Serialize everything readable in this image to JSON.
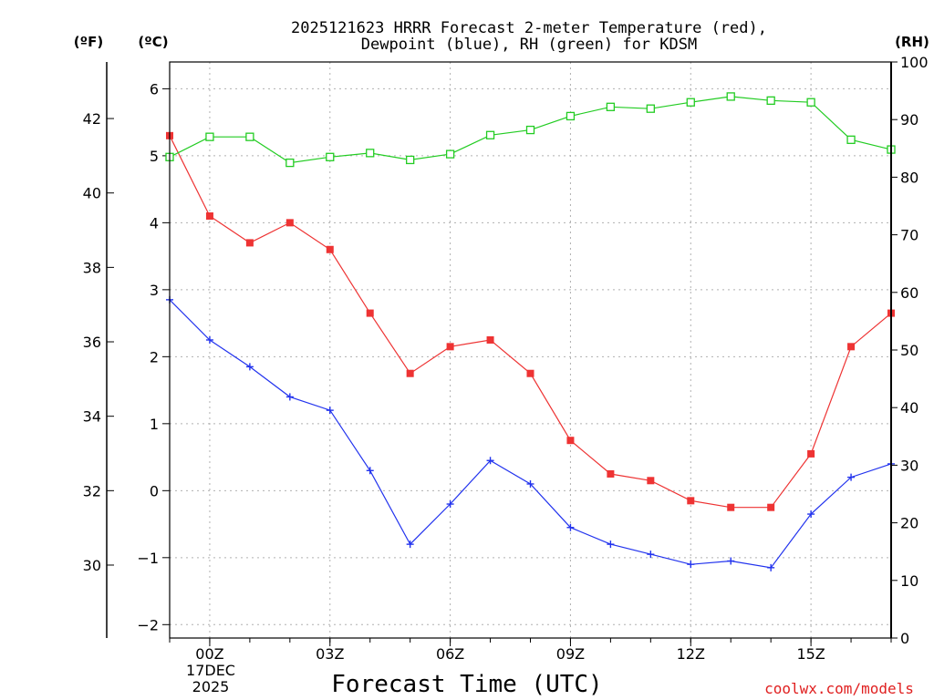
{
  "chart_data": {
    "type": "line",
    "title_line1": "2025121623 HRRR Forecast 2-meter Temperature (red),",
    "title_line2": "Dewpoint (blue), RH (green) for KDSM",
    "xlabel": "Forecast Time (UTC)",
    "credit": "coolwx.com/models",
    "units": {
      "fahrenheit": "(ºF)",
      "celsius": "(ºC)",
      "rh": "(RH)"
    },
    "x_hours": [
      -1,
      0,
      1,
      2,
      3,
      4,
      5,
      6,
      7,
      8,
      9,
      10,
      11,
      12,
      13,
      14,
      15,
      16,
      17
    ],
    "xlim": [
      -1,
      17
    ],
    "x_ticks": [
      {
        "hour": 0,
        "label": "00Z"
      },
      {
        "hour": 3,
        "label": "03Z"
      },
      {
        "hour": 6,
        "label": "06Z"
      },
      {
        "hour": 9,
        "label": "09Z"
      },
      {
        "hour": 12,
        "label": "12Z"
      },
      {
        "hour": 15,
        "label": "15Z"
      }
    ],
    "date_label_line1": "17DEC",
    "date_label_line2": "2025",
    "ylim_celsius": [
      -2.2,
      6.4
    ],
    "ylim_rh": [
      0,
      100
    ],
    "y_ticks_celsius": [
      "6",
      "5",
      "4",
      "3",
      "2",
      "1",
      "0",
      "−1",
      "−2"
    ],
    "y_ticks_fahrenheit": [
      "42",
      "40",
      "38",
      "36",
      "34",
      "32",
      "30"
    ],
    "y_ticks_rh": [
      "100",
      "90",
      "80",
      "70",
      "60",
      "50",
      "40",
      "30",
      "20",
      "10",
      "0"
    ],
    "series": [
      {
        "name": "Temperature",
        "unit": "C",
        "color": "#ee3333",
        "marker": "filled-square",
        "values": [
          5.3,
          4.1,
          3.7,
          4.0,
          3.6,
          2.65,
          1.75,
          2.15,
          2.25,
          1.75,
          0.75,
          0.25,
          0.15,
          -0.15,
          -0.25,
          -0.25,
          0.55,
          2.15,
          2.65
        ]
      },
      {
        "name": "Dewpoint",
        "unit": "C",
        "color": "#2233ee",
        "marker": "plus",
        "values": [
          2.85,
          2.25,
          1.85,
          1.4,
          1.2,
          0.3,
          -0.8,
          -0.2,
          0.45,
          0.1,
          -0.55,
          -0.8,
          -0.95,
          -1.1,
          -1.05,
          -1.15,
          -0.35,
          0.2,
          0.4
        ]
      },
      {
        "name": "RH",
        "unit": "%",
        "color": "#22cc22",
        "marker": "open-square",
        "values": [
          83.5,
          87,
          87,
          82.5,
          83.5,
          84.2,
          83,
          84,
          87.3,
          88.2,
          90.6,
          92.2,
          91.9,
          93,
          94,
          93.3,
          93,
          86.5,
          84.8
        ]
      }
    ]
  }
}
